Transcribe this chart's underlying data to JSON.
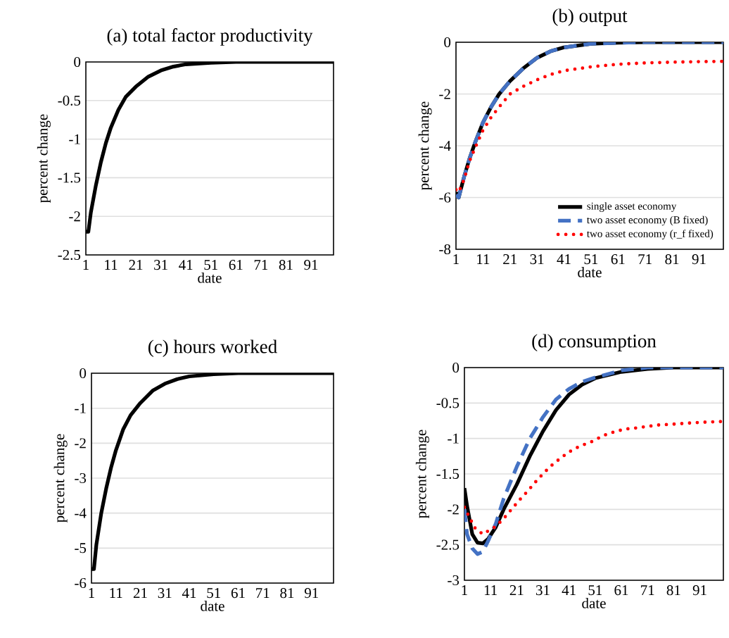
{
  "chart_data": [
    {
      "type": "line",
      "title": "(a) total factor productivity",
      "xlabel": "date",
      "ylabel": "percent change",
      "xlim": [
        1,
        100
      ],
      "xticks": [
        1,
        11,
        21,
        31,
        41,
        51,
        61,
        71,
        81,
        91
      ],
      "ylim": [
        -2.5,
        0
      ],
      "yticks": [
        -2.5,
        -2,
        -1.5,
        -1,
        -0.5,
        0
      ],
      "grid": "y",
      "legend": false,
      "series": [
        {
          "color": "#000000",
          "line_style": "solid",
          "x": [
            1,
            2,
            3,
            5,
            7,
            9,
            11,
            14,
            17,
            21,
            26,
            31,
            36,
            41,
            51,
            61,
            100
          ],
          "values": [
            -2.2,
            -2.2,
            -1.95,
            -1.6,
            -1.3,
            -1.05,
            -0.85,
            -0.62,
            -0.45,
            -0.32,
            -0.19,
            -0.11,
            -0.06,
            -0.03,
            -0.01,
            0,
            0
          ]
        }
      ]
    },
    {
      "type": "line",
      "title": "(b) output",
      "xlabel": "date",
      "ylabel": "percent change",
      "xlim": [
        1,
        100
      ],
      "xticks": [
        1,
        11,
        21,
        31,
        41,
        51,
        61,
        71,
        81,
        91
      ],
      "ylim": [
        -8,
        0
      ],
      "yticks": [
        -8,
        -6,
        -4,
        -2,
        0
      ],
      "grid": "y",
      "legend": "bottom right",
      "series": [
        {
          "name": "single asset economy",
          "color": "#000000",
          "line_style": "solid",
          "x": [
            1,
            2,
            4,
            6,
            8,
            11,
            14,
            17,
            21,
            26,
            31,
            36,
            41,
            51,
            61,
            71,
            100
          ],
          "values": [
            -5.8,
            -6.0,
            -5.2,
            -4.5,
            -3.9,
            -3.1,
            -2.5,
            -2.0,
            -1.5,
            -1.0,
            -0.6,
            -0.35,
            -0.2,
            -0.06,
            -0.02,
            0,
            0
          ]
        },
        {
          "name": "two asset economy (B fixed)",
          "color": "#4472c4",
          "line_style": "dashed",
          "x": [
            1,
            2,
            4,
            6,
            8,
            11,
            14,
            17,
            21,
            26,
            31,
            36,
            41,
            51,
            61,
            71,
            100
          ],
          "values": [
            -5.9,
            -6.0,
            -5.2,
            -4.5,
            -3.9,
            -3.1,
            -2.5,
            -2.0,
            -1.5,
            -1.0,
            -0.6,
            -0.35,
            -0.2,
            -0.06,
            -0.02,
            0,
            0
          ]
        },
        {
          "name": "two asset economy (r_f fixed)",
          "color": "#ff0000",
          "line_style": "dotted",
          "x": [
            1,
            2,
            4,
            6,
            8,
            11,
            14,
            17,
            21,
            26,
            31,
            36,
            41,
            51,
            61,
            71,
            81,
            91,
            100
          ],
          "values": [
            -5.7,
            -5.8,
            -5.3,
            -4.6,
            -4.1,
            -3.4,
            -2.9,
            -2.5,
            -2.0,
            -1.7,
            -1.45,
            -1.25,
            -1.1,
            -0.95,
            -0.85,
            -0.8,
            -0.77,
            -0.75,
            -0.74
          ]
        }
      ]
    },
    {
      "type": "line",
      "title": "(c) hours worked",
      "xlabel": "date",
      "ylabel": "percent change",
      "xlim": [
        1,
        100
      ],
      "xticks": [
        1,
        11,
        21,
        31,
        41,
        51,
        61,
        71,
        81,
        91
      ],
      "ylim": [
        -6,
        0
      ],
      "yticks": [
        -6,
        -5,
        -4,
        -3,
        -2,
        -1,
        0
      ],
      "grid": "y",
      "legend": false,
      "series": [
        {
          "color": "#000000",
          "line_style": "solid",
          "x": [
            1,
            2,
            3,
            5,
            7,
            9,
            11,
            14,
            17,
            21,
            26,
            31,
            36,
            41,
            51,
            61,
            100
          ],
          "values": [
            -5.6,
            -5.6,
            -4.9,
            -4.0,
            -3.3,
            -2.7,
            -2.2,
            -1.6,
            -1.2,
            -0.85,
            -0.5,
            -0.3,
            -0.17,
            -0.09,
            -0.03,
            0,
            0
          ]
        }
      ]
    },
    {
      "type": "line",
      "title": "(d) consumption",
      "xlabel": "date",
      "ylabel": "percent change",
      "xlim": [
        1,
        100
      ],
      "xticks": [
        1,
        11,
        21,
        31,
        41,
        51,
        61,
        71,
        81,
        91
      ],
      "ylim": [
        -3,
        0
      ],
      "yticks": [
        -3,
        -2.5,
        -2,
        -1.5,
        -1,
        -0.5,
        0
      ],
      "grid": "y",
      "legend": false,
      "series": [
        {
          "color": "#000000",
          "line_style": "solid",
          "x": [
            1,
            2,
            4,
            6,
            8,
            10,
            13,
            16,
            21,
            26,
            31,
            36,
            41,
            46,
            51,
            61,
            71,
            81,
            100
          ],
          "values": [
            -1.7,
            -1.95,
            -2.35,
            -2.47,
            -2.48,
            -2.42,
            -2.25,
            -2.0,
            -1.65,
            -1.25,
            -0.9,
            -0.6,
            -0.38,
            -0.24,
            -0.15,
            -0.06,
            -0.02,
            0,
            0
          ]
        },
        {
          "color": "#4472c4",
          "line_style": "dashed",
          "x": [
            1,
            2,
            4,
            6,
            8,
            10,
            13,
            16,
            21,
            26,
            31,
            36,
            41,
            46,
            51,
            61,
            71,
            100
          ],
          "values": [
            -2.0,
            -2.35,
            -2.55,
            -2.63,
            -2.6,
            -2.45,
            -2.2,
            -1.85,
            -1.4,
            -1.0,
            -0.7,
            -0.45,
            -0.3,
            -0.2,
            -0.14,
            -0.04,
            0,
            0
          ]
        },
        {
          "color": "#ff0000",
          "line_style": "dotted",
          "x": [
            1,
            3,
            5,
            8,
            13,
            16,
            19,
            22,
            25,
            28,
            31,
            34,
            38,
            41,
            45,
            50,
            54,
            58,
            62,
            67,
            71,
            75,
            80,
            84,
            88,
            93,
            100
          ],
          "values": [
            -1.97,
            -2.12,
            -2.26,
            -2.35,
            -2.24,
            -2.13,
            -2.0,
            -1.87,
            -1.75,
            -1.62,
            -1.5,
            -1.39,
            -1.27,
            -1.19,
            -1.11,
            -1.04,
            -0.96,
            -0.91,
            -0.87,
            -0.85,
            -0.83,
            -0.81,
            -0.8,
            -0.79,
            -0.78,
            -0.77,
            -0.76
          ]
        }
      ]
    }
  ]
}
